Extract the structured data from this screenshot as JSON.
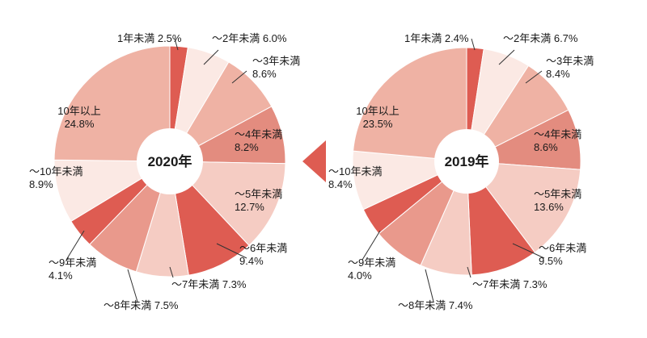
{
  "colors": {
    "c1": "#de5c52",
    "c2": "#fbe9e4",
    "c3": "#efb2a4",
    "c4": "#e38c7f",
    "c5": "#f5ccc3",
    "line": "#333333"
  },
  "chart_data": [
    {
      "type": "pie",
      "title": "2020年",
      "slices": [
        {
          "lines": [
            "1年未満 2.5%"
          ],
          "value": 2.5,
          "color": "#de5c52"
        },
        {
          "lines": [
            "～2年未満 6.0%"
          ],
          "value": 6.0,
          "color": "#fbe9e4"
        },
        {
          "lines": [
            "～3年未満",
            "8.6%"
          ],
          "value": 8.6,
          "color": "#efb2a4"
        },
        {
          "lines": [
            "～4年未満",
            "8.2%"
          ],
          "value": 8.2,
          "color": "#e38c7f"
        },
        {
          "lines": [
            "～5年未満",
            "12.7%"
          ],
          "value": 12.7,
          "color": "#f5ccc3"
        },
        {
          "lines": [
            "～6年未満",
            "9.4%"
          ],
          "value": 9.4,
          "color": "#de5c52"
        },
        {
          "lines": [
            "～7年未満 7.3%"
          ],
          "value": 7.3,
          "color": "#f5ccc3"
        },
        {
          "lines": [
            "～8年未満 7.5%"
          ],
          "value": 7.5,
          "color": "#e9998c"
        },
        {
          "lines": [
            "～9年未満",
            "4.1%"
          ],
          "value": 4.1,
          "color": "#de5c52"
        },
        {
          "lines": [
            "～10年未満",
            "8.9%"
          ],
          "value": 8.9,
          "color": "#fbe9e4"
        },
        {
          "lines": [
            "10年以上",
            "24.8%"
          ],
          "value": 24.8,
          "color": "#efb2a4"
        }
      ]
    },
    {
      "type": "pie",
      "title": "2019年",
      "slices": [
        {
          "lines": [
            "1年未満 2.4%"
          ],
          "value": 2.4,
          "color": "#de5c52"
        },
        {
          "lines": [
            "～2年未満 6.7%"
          ],
          "value": 6.7,
          "color": "#fbe9e4"
        },
        {
          "lines": [
            "～3年未満",
            "8.4%"
          ],
          "value": 8.4,
          "color": "#efb2a4"
        },
        {
          "lines": [
            "～4年未満",
            "8.6%"
          ],
          "value": 8.6,
          "color": "#e38c7f"
        },
        {
          "lines": [
            "～5年未満",
            "13.6%"
          ],
          "value": 13.6,
          "color": "#f5ccc3"
        },
        {
          "lines": [
            "～6年未満",
            "9.5%"
          ],
          "value": 9.5,
          "color": "#de5c52"
        },
        {
          "lines": [
            "～7年未満 7.3%"
          ],
          "value": 7.3,
          "color": "#f5ccc3"
        },
        {
          "lines": [
            "～8年未満 7.4%"
          ],
          "value": 7.4,
          "color": "#e9998c"
        },
        {
          "lines": [
            "～9年未満",
            "4.0%"
          ],
          "value": 4.0,
          "color": "#de5c52"
        },
        {
          "lines": [
            "～10年未満",
            "8.4%"
          ],
          "value": 8.4,
          "color": "#fbe9e4"
        },
        {
          "lines": [
            "10年以上",
            "23.5%"
          ],
          "value": 23.5,
          "color": "#efb2a4"
        }
      ]
    }
  ]
}
